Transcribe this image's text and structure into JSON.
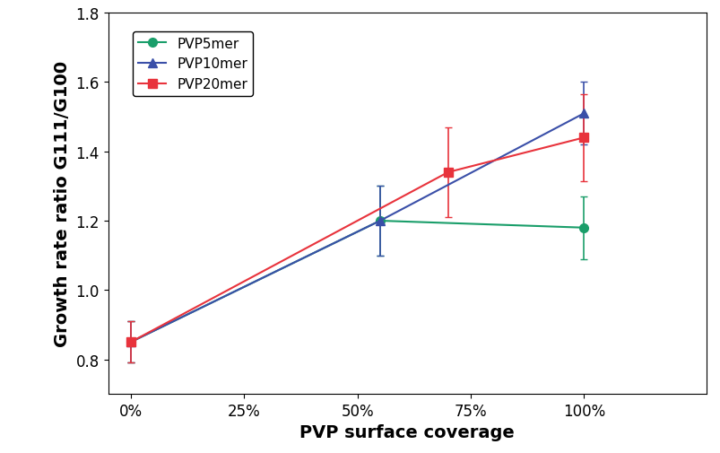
{
  "chart_data": {
    "type": "line",
    "x_label": "PVP surface coverage",
    "y_label": "Growth rate ratio G111/G100",
    "xlim": [
      -5,
      127
    ],
    "ylim": [
      0.7,
      1.8
    ],
    "xticks": [
      {
        "value": 0,
        "label": "0%"
      },
      {
        "value": 25,
        "label": "25%"
      },
      {
        "value": 50,
        "label": "50%"
      },
      {
        "value": 75,
        "label": "75%"
      },
      {
        "value": 100,
        "label": "100%"
      }
    ],
    "yticks": [
      {
        "value": 0.8,
        "label": "0.8"
      },
      {
        "value": 1.0,
        "label": "1.0"
      },
      {
        "value": 1.2,
        "label": "1.2"
      },
      {
        "value": 1.4,
        "label": "1.4"
      },
      {
        "value": 1.6,
        "label": "1.6"
      },
      {
        "value": 1.8,
        "label": "1.8"
      }
    ],
    "grid": false,
    "legend": "upper left",
    "series": [
      {
        "name": "PVP5mer",
        "color": "#1a9e6a",
        "marker": "circle",
        "x": [
          0,
          55,
          100
        ],
        "values": [
          0.85,
          1.2,
          1.18
        ],
        "errors": [
          0.06,
          0.1,
          0.09
        ]
      },
      {
        "name": "PVP10mer",
        "color": "#3a4fa8",
        "marker": "triangle",
        "x": [
          0,
          55,
          100
        ],
        "values": [
          0.85,
          1.2,
          1.51
        ],
        "errors": [
          0.06,
          0.1,
          0.09
        ]
      },
      {
        "name": "PVP20mer",
        "color": "#e8333c",
        "marker": "square",
        "x": [
          0,
          70,
          100
        ],
        "values": [
          0.85,
          1.34,
          1.44
        ],
        "errors": [
          0.06,
          0.13,
          0.125
        ]
      }
    ]
  }
}
